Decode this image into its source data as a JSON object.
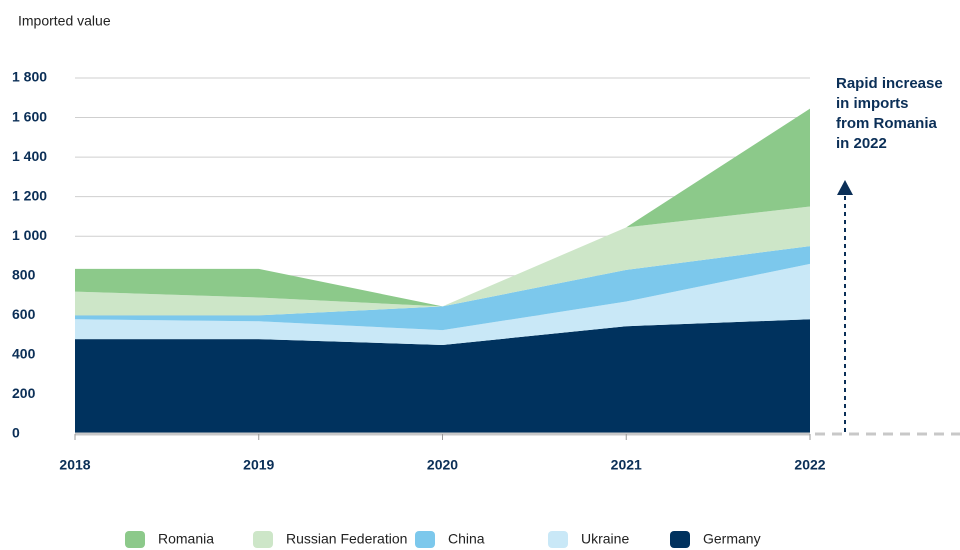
{
  "chart_data": {
    "type": "stacked_area",
    "y_axis_label": "Imported value",
    "categories": [
      "2018",
      "2019",
      "2020",
      "2021",
      "2022"
    ],
    "series": [
      {
        "name": "Romania",
        "color": "#8cc98a",
        "values": [
          115,
          145,
          0,
          0,
          495
        ]
      },
      {
        "name": "Russian Federation",
        "color": "#cde6c8",
        "values": [
          120,
          90,
          0,
          215,
          200
        ]
      },
      {
        "name": "China",
        "color": "#7cc8ec",
        "values": [
          20,
          30,
          120,
          160,
          90
        ]
      },
      {
        "name": "Ukraine",
        "color": "#c9e8f7",
        "values": [
          100,
          90,
          75,
          125,
          280
        ]
      },
      {
        "name": "Germany",
        "color": "#00325e",
        "values": [
          480,
          480,
          450,
          545,
          580
        ]
      }
    ],
    "ylim": [
      0,
      1800
    ],
    "yticks": [
      0,
      200,
      400,
      600,
      800,
      {
        "value": 1000,
        "label": "1 000"
      },
      {
        "value": 1200,
        "label": "1 200"
      },
      {
        "value": 1400,
        "label": "1 400"
      },
      {
        "value": 1600,
        "label": "1 600"
      },
      {
        "value": 1800,
        "label": "1 800"
      }
    ],
    "grid": true,
    "annotation": [
      "Rapid increase",
      "in imports",
      "from Romania",
      "in 2022"
    ]
  }
}
